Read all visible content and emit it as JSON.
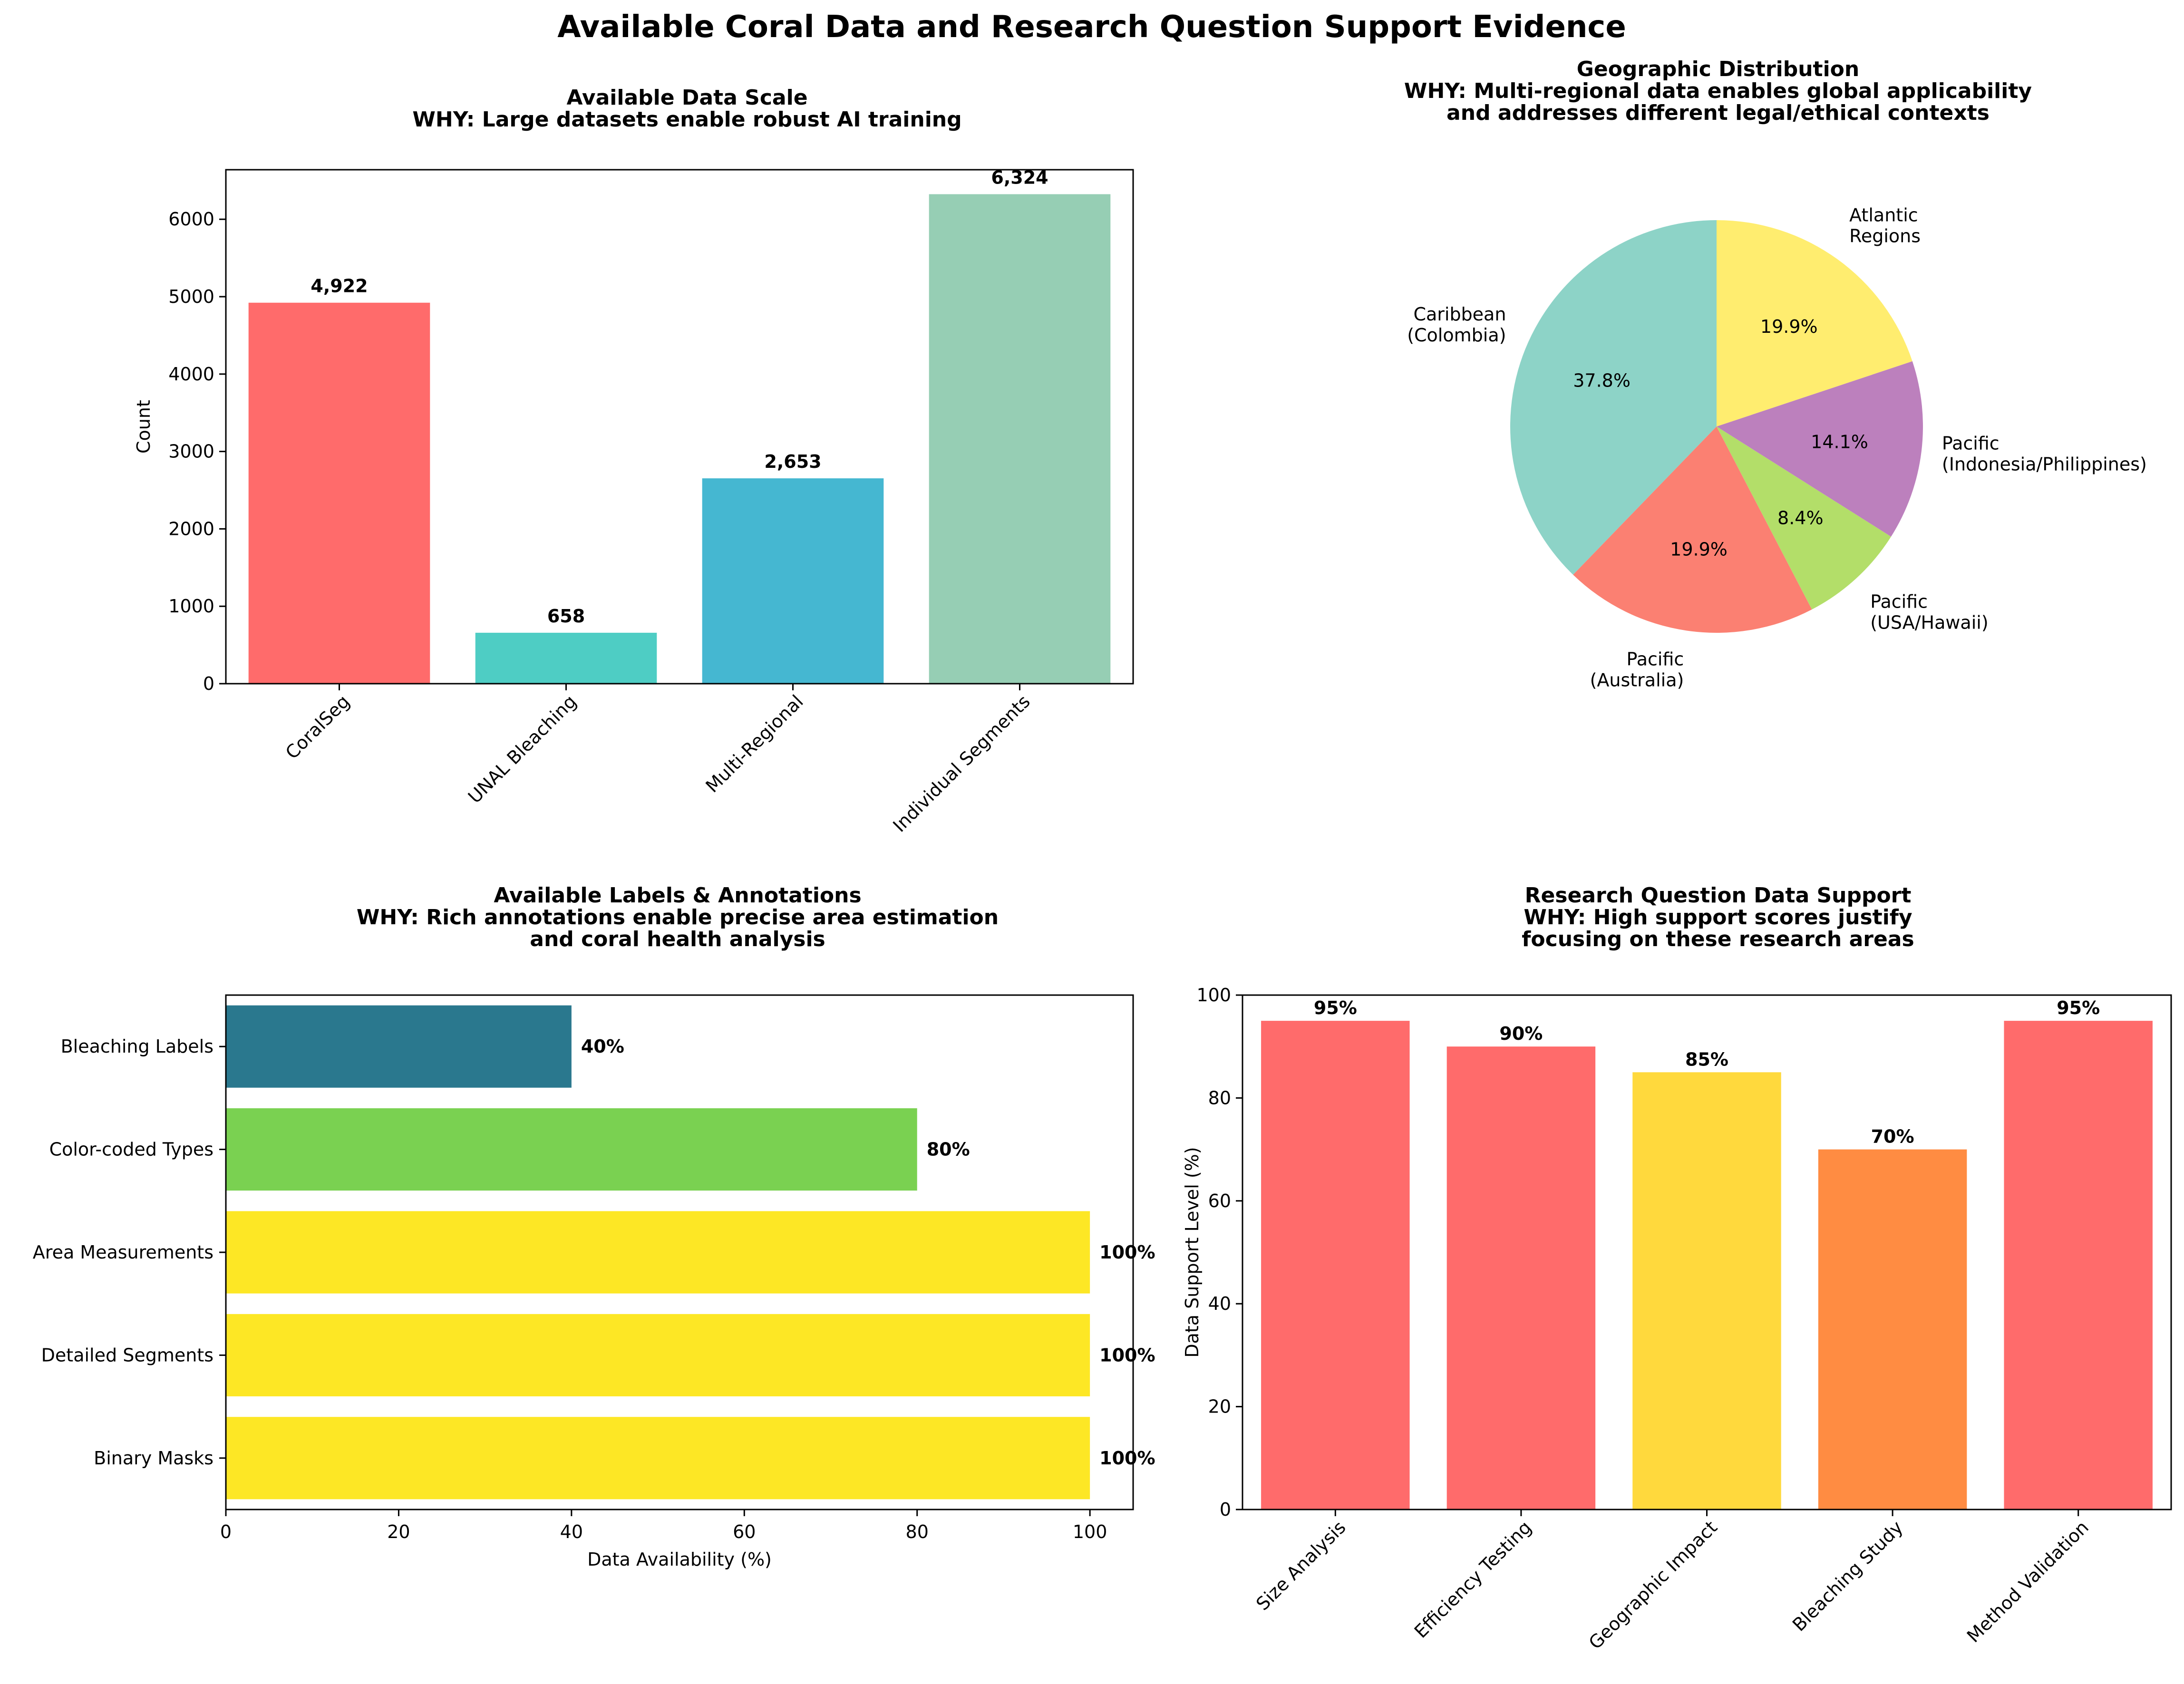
{
  "figure_title": "Available Coral Data and Research Question Support Evidence",
  "chart_data": [
    {
      "type": "bar",
      "title": [
        "Available Data Scale",
        "WHY: Large datasets enable robust AI training"
      ],
      "xlabel": "",
      "ylabel": "Count",
      "categories": [
        "CoralSeg",
        "UNAL Bleaching",
        "Multi-Regional",
        "Individual Segments"
      ],
      "values": [
        4922,
        658,
        2653,
        6324
      ],
      "value_labels": [
        "4,922",
        "658",
        "2,653",
        "6,324"
      ],
      "colors": [
        "#FF6B6B",
        "#4ECDC4",
        "#45B7D1",
        "#96CEB4"
      ],
      "ylim": [
        0,
        6640
      ],
      "yticks": [
        0,
        1000,
        2000,
        3000,
        4000,
        5000,
        6000
      ],
      "grid": false,
      "legend": "none"
    },
    {
      "type": "pie",
      "title": [
        "Geographic Distribution",
        "WHY: Multi-regional data enables global applicability",
        "and addresses different legal/ethical contexts"
      ],
      "slices": [
        {
          "label": [
            "Caribbean",
            "(Colombia)"
          ],
          "value": 37.8,
          "pct": "37.8%",
          "color": "#8DD3C7"
        },
        {
          "label": [
            "Pacific",
            "(Australia)"
          ],
          "value": 19.9,
          "pct": "19.9%",
          "color": "#FB8072"
        },
        {
          "label": [
            "Pacific",
            "(USA/Hawaii)"
          ],
          "value": 8.4,
          "pct": "8.4%",
          "color": "#B3DE69"
        },
        {
          "label": [
            "Pacific",
            "(Indonesia/Philippines)"
          ],
          "value": 14.1,
          "pct": "14.1%",
          "color": "#BC80BD"
        },
        {
          "label": [
            "Atlantic",
            "Regions"
          ],
          "value": 19.9,
          "pct": "19.9%",
          "color": "#FFED6F"
        }
      ],
      "start_angle_deg": 90,
      "direction": "counterclockwise",
      "legend": "none"
    },
    {
      "type": "bar",
      "orientation": "horizontal",
      "title": [
        "Available Labels & Annotations",
        "WHY: Rich annotations enable precise area estimation",
        "and coral health analysis"
      ],
      "xlabel": "Data Availability (%)",
      "ylabel": "",
      "categories": [
        "Binary Masks",
        "Detailed Segments",
        "Area Measurements",
        "Color-coded Types",
        "Bleaching Labels"
      ],
      "values": [
        100,
        100,
        100,
        80,
        40
      ],
      "value_labels": [
        "100%",
        "100%",
        "100%",
        "80%",
        "40%"
      ],
      "colors": [
        "#FDE725",
        "#FDE725",
        "#FDE725",
        "#7AD151",
        "#2A788E"
      ],
      "xlim": [
        0,
        105
      ],
      "xticks": [
        0,
        20,
        40,
        60,
        80,
        100
      ],
      "grid": false,
      "legend": "none"
    },
    {
      "type": "bar",
      "title": [
        "Research Question Data Support",
        "WHY: High support scores justify",
        "focusing on these research areas"
      ],
      "xlabel": "",
      "ylabel": "Data Support Level (%)",
      "categories": [
        "Size Analysis",
        "Efficiency Testing",
        "Geographic Impact",
        "Bleaching Study",
        "Method Validation"
      ],
      "values": [
        95,
        90,
        85,
        70,
        95
      ],
      "value_labels": [
        "95%",
        "90%",
        "85%",
        "70%",
        "95%"
      ],
      "colors": [
        "#FF6B6B",
        "#FF6B6B",
        "#FFD93D",
        "#FF8C42",
        "#FF6B6B"
      ],
      "ylim": [
        0,
        100
      ],
      "yticks": [
        0,
        20,
        40,
        60,
        80,
        100
      ],
      "grid": false,
      "legend": "none"
    }
  ]
}
